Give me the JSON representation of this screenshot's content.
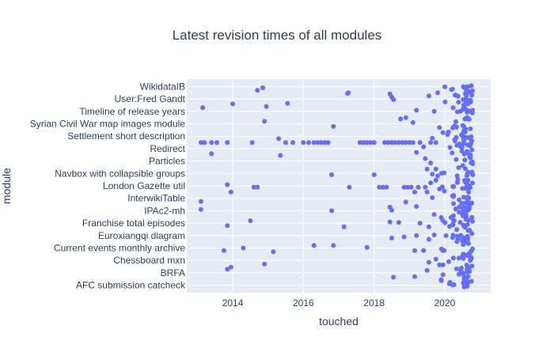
{
  "chart_data": {
    "type": "scatter",
    "title": "Latest revision times of all modules",
    "xlabel": "touched",
    "ylabel": "module",
    "xlim": [
      2012.7,
      2021.3
    ],
    "x_ticks": [
      "2014",
      "2016",
      "2018",
      "2020"
    ],
    "x_tick_values": [
      2014,
      2016,
      2018,
      2020
    ],
    "y_ticks": [
      "WikidataIB",
      "User:Fred Gandt",
      "Timeline of release years",
      "Syrian Civil War map images module",
      "Settlement short description",
      "Redirect",
      "Particles",
      "Navbox with collapsible groups",
      "London Gazette util",
      "InterwikiTable",
      "IPAc2-mh",
      "Franchise total episodes",
      "Euroxiangqi diagram",
      "Current events monthly archive",
      "Chessboard mxn",
      "BRFA",
      "AFC submission catcheck"
    ],
    "y_tick_values": [
      16,
      14,
      12,
      10,
      8,
      6,
      4,
      2,
      0,
      -2,
      -4,
      -6,
      -8,
      -10,
      -12,
      -14,
      -16
    ],
    "ylim": [
      -17.2,
      17.2
    ],
    "marker_color": "#636efa",
    "plot_background": "#e5ecf6",
    "grid": true,
    "points": [
      [
        2014.7,
        15.4
      ],
      [
        2014.85,
        15.8
      ],
      [
        2017.25,
        14.9
      ],
      [
        2017.27,
        15.0
      ],
      [
        2018.45,
        14.8
      ],
      [
        2018.5,
        14.3
      ],
      [
        2018.55,
        13.9
      ],
      [
        2019.55,
        14.5
      ],
      [
        2019.8,
        15.0
      ],
      [
        2013.15,
        12.6
      ],
      [
        2014.0,
        13.2
      ],
      [
        2014.95,
        12.8
      ],
      [
        2015.55,
        13.3
      ],
      [
        2018.9,
        11.0
      ],
      [
        2019.2,
        12.2
      ],
      [
        2019.7,
        12.0
      ],
      [
        2014.9,
        10.4
      ],
      [
        2016.85,
        9.6
      ],
      [
        2018.75,
        10.8
      ],
      [
        2019.1,
        10.2
      ],
      [
        2019.85,
        9.4
      ],
      [
        2019.95,
        8.6
      ],
      [
        2015.3,
        7.6
      ],
      [
        2015.5,
        7.0
      ],
      [
        2015.7,
        7.0
      ],
      [
        2016.0,
        7.0
      ],
      [
        2016.15,
        7.0
      ],
      [
        2016.3,
        7.0
      ],
      [
        2016.4,
        7.0
      ],
      [
        2016.5,
        7.0
      ],
      [
        2016.6,
        7.0
      ],
      [
        2016.7,
        7.0
      ],
      [
        2013.1,
        7.0
      ],
      [
        2013.2,
        7.0
      ],
      [
        2013.4,
        7.0
      ],
      [
        2013.55,
        7.0
      ],
      [
        2013.85,
        7.0
      ],
      [
        2014.55,
        7.0
      ],
      [
        2017.6,
        7.0
      ],
      [
        2017.7,
        7.0
      ],
      [
        2017.8,
        7.0
      ],
      [
        2017.9,
        7.0
      ],
      [
        2018.0,
        7.0
      ],
      [
        2018.3,
        7.0
      ],
      [
        2018.4,
        7.0
      ],
      [
        2018.5,
        7.0
      ],
      [
        2018.6,
        7.0
      ],
      [
        2018.7,
        7.0
      ],
      [
        2018.8,
        7.0
      ],
      [
        2018.9,
        7.0
      ],
      [
        2019.0,
        7.0
      ],
      [
        2019.1,
        7.0
      ],
      [
        2019.3,
        7.0
      ],
      [
        2019.6,
        7.0
      ],
      [
        2019.75,
        7.0
      ],
      [
        2019.4,
        6.3
      ],
      [
        2019.65,
        7.7
      ],
      [
        2013.4,
        5.2
      ],
      [
        2015.35,
        4.9
      ],
      [
        2019.2,
        5.4
      ],
      [
        2019.45,
        4.4
      ],
      [
        2019.6,
        3.7
      ],
      [
        2019.5,
        2.7
      ],
      [
        2019.75,
        2.7
      ],
      [
        2019.65,
        1.9
      ],
      [
        2019.8,
        1.6
      ],
      [
        2016.8,
        1.8
      ],
      [
        2018.0,
        1.8
      ],
      [
        2013.85,
        0.2
      ],
      [
        2014.6,
        -0.2
      ],
      [
        2014.7,
        -0.2
      ],
      [
        2017.3,
        -0.2
      ],
      [
        2018.15,
        -0.2
      ],
      [
        2018.25,
        -0.2
      ],
      [
        2018.35,
        -0.2
      ],
      [
        2018.85,
        -0.2
      ],
      [
        2018.95,
        -0.2
      ],
      [
        2019.05,
        -0.2
      ],
      [
        2019.25,
        -0.2
      ],
      [
        2019.45,
        -0.2
      ],
      [
        2019.6,
        0.5
      ],
      [
        2019.75,
        0.9
      ],
      [
        2019.85,
        -0.5
      ],
      [
        2019.15,
        -1.0
      ],
      [
        2013.95,
        -1.0
      ],
      [
        2013.1,
        -2.5
      ],
      [
        2019.5,
        -1.0
      ],
      [
        2019.65,
        -1.9
      ],
      [
        2013.1,
        -3.8
      ],
      [
        2016.8,
        -4.0
      ],
      [
        2018.45,
        -3.4
      ],
      [
        2018.5,
        -3.9
      ],
      [
        2018.9,
        -2.6
      ],
      [
        2019.2,
        -3.3
      ],
      [
        2019.7,
        -4.6
      ],
      [
        2014.5,
        -5.6
      ],
      [
        2013.85,
        -6.4
      ],
      [
        2017.15,
        -6.6
      ],
      [
        2018.45,
        -5.8
      ],
      [
        2018.7,
        -5.9
      ],
      [
        2019.3,
        -6.0
      ],
      [
        2019.55,
        -6.6
      ],
      [
        2019.9,
        -5.1
      ],
      [
        2018.5,
        -8.4
      ],
      [
        2018.85,
        -8.2
      ],
      [
        2019.2,
        -8.0
      ],
      [
        2019.55,
        -8.6
      ],
      [
        2019.7,
        -7.9
      ],
      [
        2013.75,
        -10.4
      ],
      [
        2014.3,
        -10.0
      ],
      [
        2015.15,
        -10.6
      ],
      [
        2016.3,
        -9.6
      ],
      [
        2016.85,
        -9.6
      ],
      [
        2017.8,
        -9.9
      ],
      [
        2019.15,
        -10.4
      ],
      [
        2019.4,
        -10.4
      ],
      [
        2019.95,
        -10.4
      ],
      [
        2013.85,
        -13.4
      ],
      [
        2013.95,
        -13.1
      ],
      [
        2014.9,
        -12.6
      ],
      [
        2019.55,
        -12.3
      ],
      [
        2019.75,
        -11.8
      ],
      [
        2019.85,
        -12.7
      ],
      [
        2019.95,
        -12.7
      ],
      [
        2018.55,
        -14.7
      ],
      [
        2019.15,
        -14.6
      ],
      [
        2019.5,
        -13.6
      ],
      [
        2019.9,
        -15.1
      ],
      [
        2019.95,
        -14.3
      ]
    ]
  }
}
